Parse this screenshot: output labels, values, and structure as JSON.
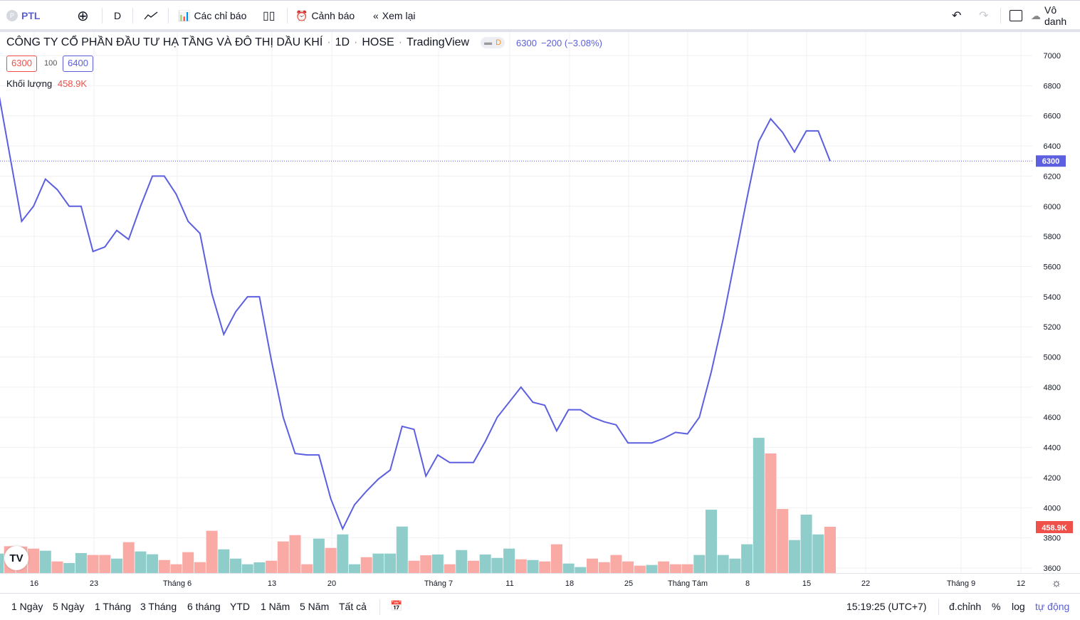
{
  "toolbar": {
    "symbol": "PTL",
    "symbol_initial": "P",
    "interval": "D",
    "indicators_label": "Các chỉ báo",
    "alerts_label": "Cảnh báo",
    "replay_label": "Xem lại",
    "layout_name": "Vô danh"
  },
  "legend": {
    "title": "CÔNG TY CỔ PHẦN ĐẦU TƯ HẠ TẦNG VÀ ĐÔ THỊ DẦU KHÍ",
    "interval": "1D",
    "exchange": "HOSE",
    "source": "TradingView",
    "badge": "D",
    "last": "6300",
    "change": "−200 (−3.08%)",
    "bid": "6300",
    "spread": "100",
    "ask": "6400",
    "volume_label": "Khối lượng",
    "volume_value": "458.9K"
  },
  "bottom": {
    "ranges": [
      "1 Ngày",
      "5 Ngày",
      "1 Tháng",
      "3 Tháng",
      "6 tháng",
      "YTD",
      "1 Năm",
      "5 Năm",
      "Tất cả"
    ],
    "time": "15:19:25 (UTC+7)",
    "adjust": "đ.chỉnh",
    "percent": "%",
    "log": "log",
    "auto": "tự động"
  },
  "colors": {
    "line": "#5b5fe0",
    "up": "#8fcdcb",
    "down": "#f9aaa5",
    "last_price_bg": "#5b5fe0",
    "volume_label_bg": "#f0504a"
  },
  "chart_data": {
    "type": "line",
    "ylim": [
      3600,
      7000
    ],
    "yticks": [
      "7000",
      "6800",
      "6600",
      "6400",
      "6200",
      "6000",
      "5800",
      "5600",
      "5400",
      "5200",
      "5000",
      "4800",
      "4600",
      "4400",
      "4200",
      "4000",
      "3800",
      "3600"
    ],
    "xticks": [
      "16",
      "23",
      "Tháng 6",
      "13",
      "20",
      "Tháng 7",
      "11",
      "18",
      "25",
      "Tháng Tám",
      "8",
      "15",
      "22",
      "Tháng 9",
      "12"
    ],
    "last_price_label": "6300",
    "last_volume_label": "458.9K",
    "close": [
      6780,
      6340,
      5900,
      6000,
      6180,
      6110,
      6000,
      6000,
      5700,
      5730,
      5840,
      5780,
      6000,
      6200,
      6200,
      6080,
      5900,
      5820,
      5420,
      5150,
      5300,
      5400,
      5400,
      4980,
      4600,
      4360,
      4350,
      4350,
      4060,
      3860,
      4020,
      4110,
      4190,
      4250,
      4540,
      4520,
      4210,
      4350,
      4300,
      4300,
      4300,
      4440,
      4600,
      4700,
      4800,
      4700,
      4680,
      4510,
      4650,
      4650,
      4600,
      4570,
      4550,
      4430,
      4430,
      4430,
      4460,
      4500,
      4490,
      4600,
      4900,
      5250,
      5650,
      6050,
      6430,
      6580,
      6490,
      6360,
      6500,
      6500,
      6300
    ],
    "volume_k": [
      193,
      266,
      263,
      242,
      221,
      115,
      99,
      198,
      179,
      179,
      143,
      306,
      214,
      186,
      129,
      87,
      207,
      108,
      419,
      235,
      143,
      87,
      106,
      122,
      313,
      376,
      87,
      341,
      249,
      383,
      87,
      157,
      193,
      193,
      461,
      122,
      176,
      184,
      87,
      228,
      122,
      184,
      150,
      242,
      136,
      129,
      115,
      285,
      94,
      59,
      143,
      108,
      179,
      115,
      73,
      80,
      115,
      87,
      87,
      179,
      628,
      179,
      143,
      285,
      1341,
      1186,
      635,
      327,
      579,
      383,
      458.9
    ],
    "volume_dir": [
      "u",
      "d",
      "d",
      "d",
      "u",
      "d",
      "u",
      "u",
      "d",
      "d",
      "u",
      "d",
      "u",
      "u",
      "d",
      "d",
      "d",
      "d",
      "d",
      "u",
      "u",
      "u",
      "u",
      "d",
      "d",
      "d",
      "d",
      "u",
      "d",
      "u",
      "u",
      "d",
      "u",
      "u",
      "u",
      "d",
      "d",
      "u",
      "d",
      "u",
      "d",
      "u",
      "u",
      "u",
      "d",
      "u",
      "d",
      "d",
      "u",
      "u",
      "d",
      "d",
      "d",
      "d",
      "d",
      "u",
      "d",
      "d",
      "d",
      "u",
      "u",
      "u",
      "u",
      "u",
      "u",
      "d",
      "d",
      "u",
      "u",
      "u",
      "d"
    ]
  }
}
